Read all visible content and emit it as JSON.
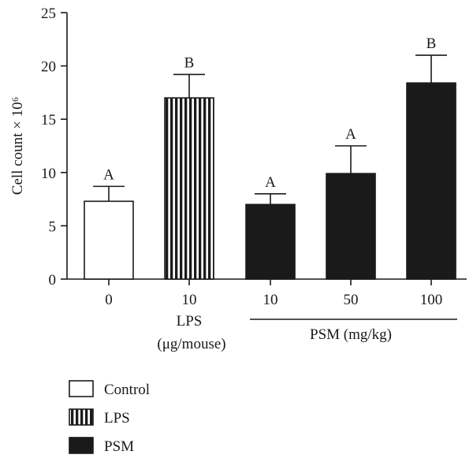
{
  "chart_data": {
    "type": "bar",
    "ylabel": "Cell count × 10⁶",
    "ylim": [
      0,
      25
    ],
    "yticks": [
      0,
      5,
      10,
      15,
      20,
      25
    ],
    "categories": [
      "0",
      "10",
      "10",
      "50",
      "100"
    ],
    "values": [
      7.3,
      17.0,
      7.0,
      9.9,
      18.4
    ],
    "errors": [
      1.4,
      2.2,
      1.0,
      2.6,
      2.6
    ],
    "letters": [
      "A",
      "B",
      "A",
      "A",
      "B"
    ],
    "bar_groups": [
      "Control",
      "LPS",
      "PSM",
      "PSM",
      "PSM"
    ],
    "group_labels": {
      "lps_line1": "LPS",
      "lps_line2": "(μg/mouse)",
      "psm": "PSM (mg/kg)"
    },
    "legend": [
      {
        "label": "Control",
        "pattern": "open"
      },
      {
        "label": "LPS",
        "pattern": "vertical-stripes"
      },
      {
        "label": "PSM",
        "pattern": "solid"
      }
    ],
    "colors": {
      "ink": "#1a1a1a",
      "background": "#ffffff"
    }
  }
}
